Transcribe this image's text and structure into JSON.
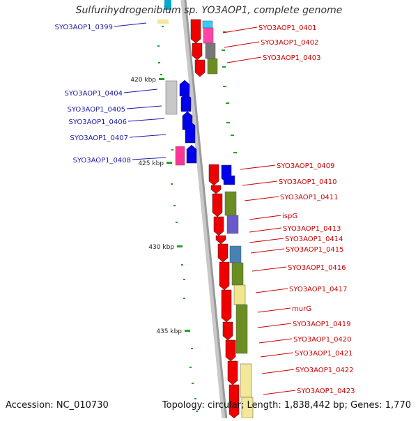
{
  "title": "Sulfurihydrogenibium sp. YO3AOP1, complete genome",
  "footer": {
    "accession": "Accession: NC_010730",
    "summary": "Topology: circular; Length: 1,838,442 bp; Genes: 1,770"
  },
  "colors": {
    "left_label": "#1a1aa8",
    "right_label": "#cc0000",
    "gene_red": "#ee0000",
    "gene_blue": "#0000ee",
    "backbone": "#9a9a9a",
    "tick_green": "#22a022"
  },
  "positions": [
    {
      "label": "420 kbp"
    },
    {
      "label": "425 kbp"
    },
    {
      "label": "430 kbp"
    },
    {
      "label": "435 kbp"
    }
  ],
  "left_genes": [
    {
      "label": "SYO3AOP1_0399"
    },
    {
      "label": "SYO3AOP1_0404"
    },
    {
      "label": "SYO3AOP1_0405"
    },
    {
      "label": "SYO3AOP1_0406"
    },
    {
      "label": "SYO3AOP1_0407"
    },
    {
      "label": "SYO3AOP1_0408"
    }
  ],
  "right_genes": [
    {
      "label": "SYO3AOP1_0401"
    },
    {
      "label": "SYO3AOP1_0402"
    },
    {
      "label": "SYO3AOP1_0403"
    },
    {
      "label": "SYO3AOP1_0409"
    },
    {
      "label": "SYO3AOP1_0410"
    },
    {
      "label": "SYO3AOP1_0411"
    },
    {
      "label": "ispG"
    },
    {
      "label": "SYO3AOP1_0413"
    },
    {
      "label": "SYO3AOP1_0414"
    },
    {
      "label": "SYO3AOP1_0415"
    },
    {
      "label": "SYO3AOP1_0416"
    },
    {
      "label": "SYO3AOP1_0417"
    },
    {
      "label": "murG"
    },
    {
      "label": "SYO3AOP1_0419"
    },
    {
      "label": "SYO3AOP1_0420"
    },
    {
      "label": "SYO3AOP1_0421"
    },
    {
      "label": "SYO3AOP1_0422"
    },
    {
      "label": "SYO3AOP1_0423"
    }
  ]
}
